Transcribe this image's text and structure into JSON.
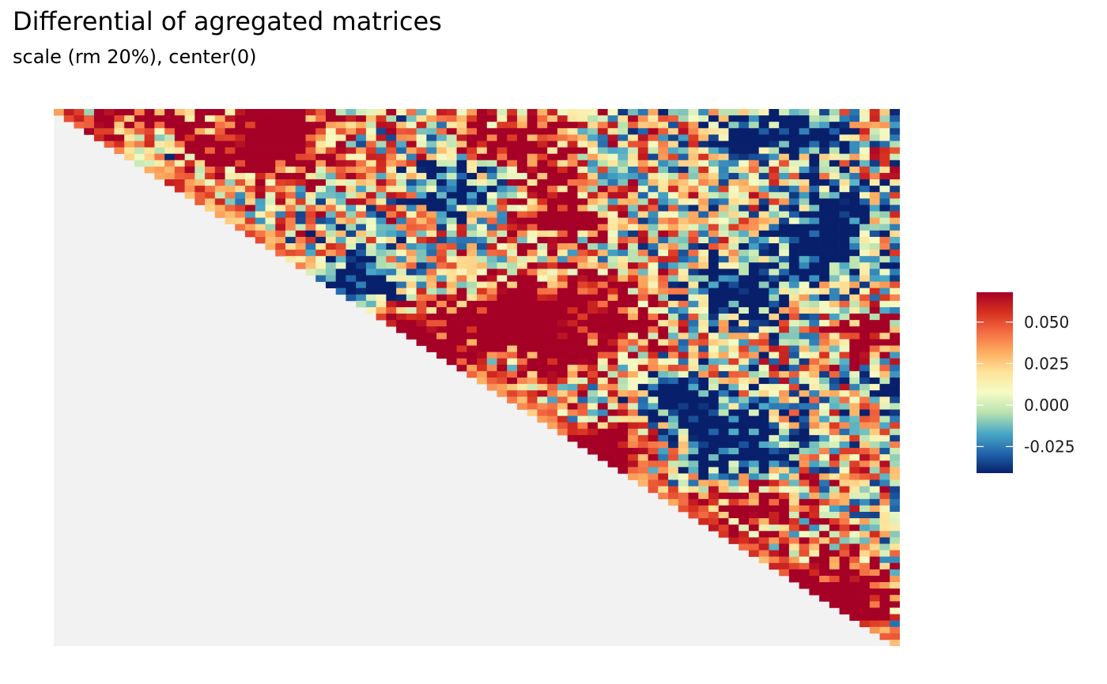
{
  "header": {
    "title": "Differential of agregated matrices",
    "subtitle": "scale (rm 20%), center(0)"
  },
  "chart_data": {
    "type": "heatmap",
    "shape": "upper-triangle",
    "title": "Differential of agregated matrices",
    "subtitle": "scale (rm 20%), center(0)",
    "xlabel": "",
    "ylabel": "",
    "n_bins": 84,
    "na_color": "#f2f2f2",
    "value_range": [
      -0.041,
      0.068
    ],
    "colorscale": "Spectral (reversed)",
    "colors": [
      "#08206b",
      "#2166ac",
      "#4aa9c6",
      "#b8e2b0",
      "#f4fbc5",
      "#fee49a",
      "#fdae61",
      "#f46d43",
      "#d7301f",
      "#a50026"
    ],
    "legend": {
      "position": "right",
      "ticks": [
        0.05,
        0.025,
        0.0,
        -0.025
      ],
      "tick_labels": [
        "0.050",
        "0.025",
        "0.000",
        "-0.025"
      ]
    },
    "hotspots_red": [
      [
        0.12,
        0.05,
        0.07
      ],
      [
        0.27,
        0.03,
        0.06
      ],
      [
        0.25,
        0.08,
        0.06
      ],
      [
        0.55,
        0.07,
        0.07
      ],
      [
        0.59,
        0.19,
        0.06
      ],
      [
        0.57,
        0.36,
        0.06
      ],
      [
        0.54,
        0.4,
        0.05
      ],
      [
        0.45,
        0.41,
        0.06
      ],
      [
        0.6,
        0.46,
        0.05
      ],
      [
        0.66,
        0.38,
        0.06
      ],
      [
        0.67,
        0.62,
        0.05
      ],
      [
        0.83,
        0.73,
        0.06
      ],
      [
        0.92,
        0.87,
        0.05
      ],
      [
        0.97,
        0.91,
        0.04
      ],
      [
        0.96,
        0.42,
        0.04
      ]
    ],
    "hotspots_blue": [
      [
        0.11,
        0.08,
        0.04
      ],
      [
        0.49,
        0.15,
        0.05
      ],
      [
        0.35,
        0.33,
        0.05
      ],
      [
        0.81,
        0.63,
        0.07
      ],
      [
        0.91,
        0.26,
        0.06
      ],
      [
        0.81,
        0.34,
        0.06
      ],
      [
        0.74,
        0.55,
        0.05
      ],
      [
        0.93,
        0.18,
        0.04
      ],
      [
        0.99,
        0.52,
        0.03
      ],
      [
        0.82,
        0.05,
        0.04
      ],
      [
        0.9,
        0.05,
        0.04
      ]
    ]
  }
}
